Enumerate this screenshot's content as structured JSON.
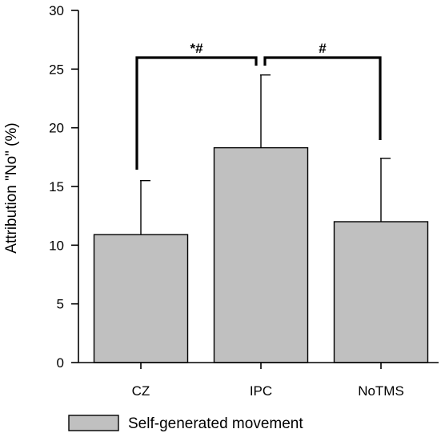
{
  "chart_data": {
    "type": "bar",
    "categories": [
      "CZ",
      "IPC",
      "NoTMS"
    ],
    "series": [
      {
        "name": "Self-generated movement",
        "values": [
          10.9,
          18.3,
          12.0
        ],
        "error_upper": [
          15.5,
          24.5,
          17.4
        ],
        "color": "#c0c0c0"
      }
    ],
    "ylabel": "Attribution \"No\" (%)",
    "xlabel": "",
    "ylim": [
      0,
      30
    ],
    "yticks": [
      "0",
      "5",
      "10",
      "15",
      "20",
      "25",
      "30"
    ],
    "grid": false,
    "legend_position": "bottom",
    "annotations": [
      {
        "text": "*#",
        "between": [
          "CZ",
          "IPC"
        ]
      },
      {
        "text": "#",
        "between": [
          "IPC",
          "NoTMS"
        ]
      }
    ]
  }
}
